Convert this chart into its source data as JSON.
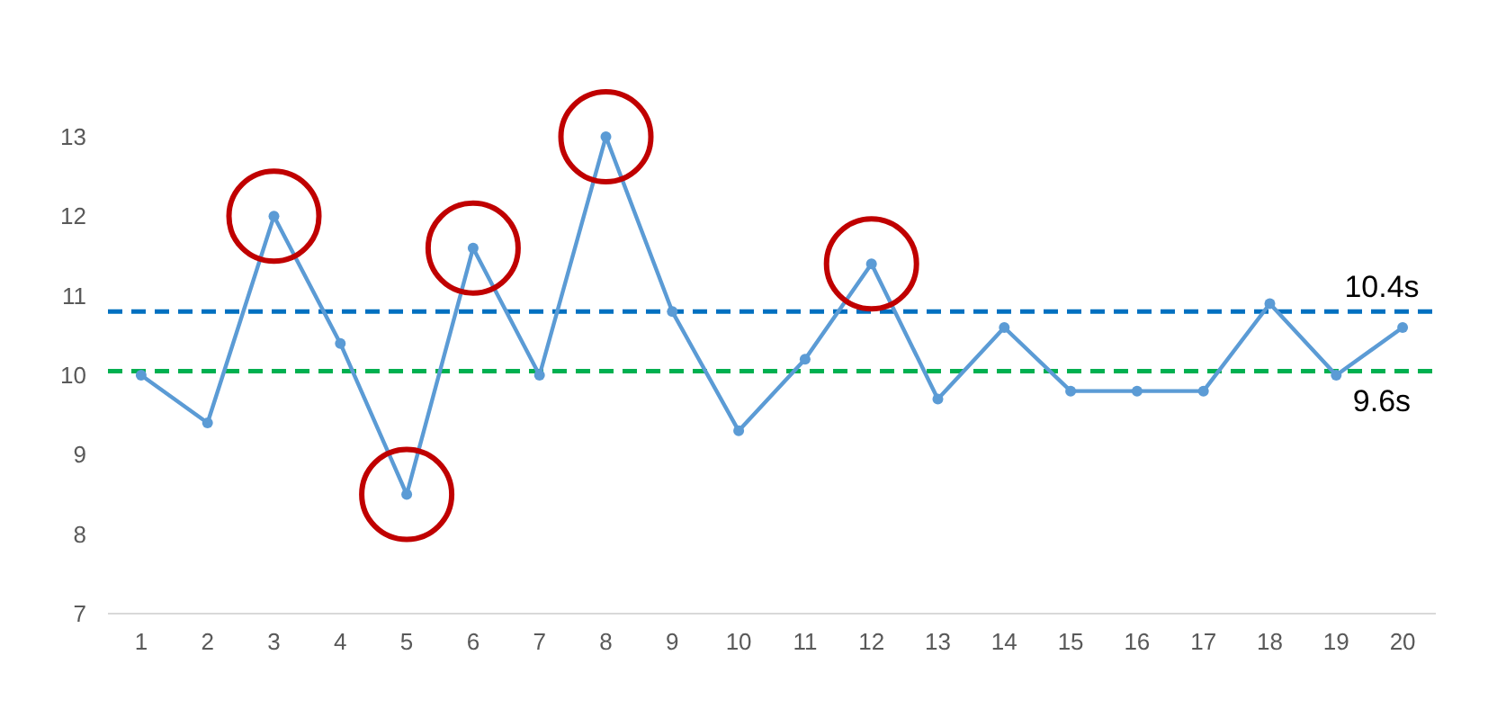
{
  "chart_data": {
    "type": "line",
    "categories": [
      "1",
      "2",
      "3",
      "4",
      "5",
      "6",
      "7",
      "8",
      "9",
      "10",
      "11",
      "12",
      "13",
      "14",
      "15",
      "16",
      "17",
      "18",
      "19",
      "20"
    ],
    "series": [
      {
        "color": "#5b9bd5",
        "values": [
          10.0,
          9.4,
          12.0,
          10.4,
          8.5,
          11.6,
          10.0,
          13.0,
          10.8,
          9.3,
          10.2,
          11.4,
          9.7,
          10.6,
          9.8,
          9.8,
          9.8,
          10.9,
          10.0,
          10.6
        ]
      }
    ],
    "ylim": [
      7,
      13
    ],
    "yticks": [
      7,
      8,
      9,
      10,
      11,
      12,
      13
    ],
    "grid": false,
    "marker": "circle",
    "line_style": "solid",
    "ref_lines": [
      {
        "axis": "y",
        "value": 10.8,
        "label": "10.4s",
        "color": "#0070c0",
        "line_style": "dashed"
      },
      {
        "axis": "y",
        "value": 10.05,
        "label": "9.6s",
        "color": "#00b050",
        "line_style": "dashed"
      }
    ]
  }
}
